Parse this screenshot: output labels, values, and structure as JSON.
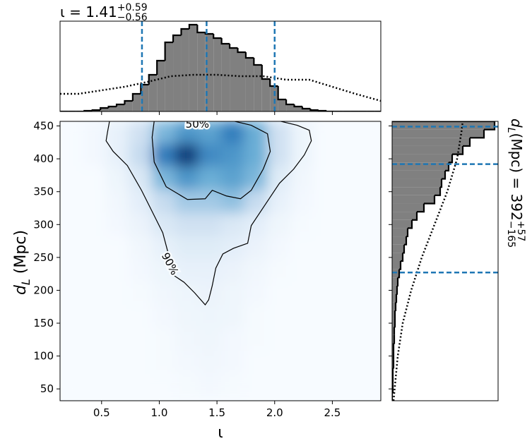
{
  "chart_data": [
    {
      "type": "heatmap",
      "xlabel": "ι",
      "ylabel": {
        "main": "d",
        "sub": "L",
        "rest": " (Mpc)"
      },
      "xlim": [
        0.14,
        2.92
      ],
      "ylim": [
        32,
        457
      ],
      "xticks": [
        0.5,
        {
          "value": 1,
          "label": "1.0"
        },
        1.5,
        {
          "value": 2,
          "label": "2.0"
        },
        2.5
      ],
      "yticks": [
        50,
        100,
        150,
        200,
        250,
        300,
        350,
        400,
        450
      ],
      "density": {
        "x": [
          0.24,
          0.44,
          0.64,
          0.84,
          1.04,
          1.24,
          1.44,
          1.64,
          1.84,
          2.04,
          2.24,
          2.44,
          2.64,
          2.84
        ],
        "y": [
          440,
          405,
          370,
          335,
          300,
          265,
          230,
          195,
          160,
          125,
          90,
          55
        ],
        "z": [
          [
            0,
            0.02,
            0.08,
            0.2,
            0.45,
            0.6,
            0.55,
            0.7,
            0.5,
            0.2,
            0.05,
            0,
            0,
            0
          ],
          [
            0,
            0.02,
            0.08,
            0.25,
            0.7,
            0.95,
            0.65,
            0.6,
            0.5,
            0.2,
            0.05,
            0,
            0,
            0
          ],
          [
            0,
            0,
            0.05,
            0.15,
            0.45,
            0.6,
            0.5,
            0.55,
            0.45,
            0.12,
            0.03,
            0,
            0,
            0
          ],
          [
            0,
            0,
            0.03,
            0.1,
            0.25,
            0.35,
            0.35,
            0.4,
            0.25,
            0.08,
            0.02,
            0,
            0,
            0
          ],
          [
            0,
            0,
            0.02,
            0.06,
            0.15,
            0.2,
            0.2,
            0.15,
            0.1,
            0.04,
            0.01,
            0,
            0,
            0
          ],
          [
            0,
            0,
            0,
            0.03,
            0.08,
            0.12,
            0.12,
            0.1,
            0.06,
            0.02,
            0,
            0,
            0,
            0
          ],
          [
            0,
            0,
            0,
            0.02,
            0.05,
            0.08,
            0.08,
            0.06,
            0.03,
            0.01,
            0,
            0,
            0,
            0
          ],
          [
            0,
            0,
            0,
            0.01,
            0.03,
            0.05,
            0.06,
            0.04,
            0.02,
            0,
            0,
            0,
            0,
            0
          ],
          [
            0,
            0,
            0,
            0,
            0.02,
            0.04,
            0.05,
            0.04,
            0.01,
            0,
            0,
            0,
            0,
            0
          ],
          [
            0,
            0,
            0,
            0,
            0.01,
            0.03,
            0.04,
            0.02,
            0.01,
            0,
            0,
            0,
            0,
            0
          ],
          [
            0,
            0,
            0,
            0,
            0.01,
            0.02,
            0.03,
            0.02,
            0,
            0,
            0,
            0,
            0,
            0
          ],
          [
            0,
            0,
            0,
            0,
            0,
            0.01,
            0.02,
            0.01,
            0,
            0,
            0,
            0,
            0,
            0
          ]
        ]
      },
      "contours": [
        {
          "label": "90%",
          "x": [
            0.569,
            0.551,
            0.539,
            0.6,
            0.723,
            0.846,
            0.938,
            1.03,
            1.079,
            1.122,
            1.214,
            1.306,
            1.398,
            1.428,
            1.459,
            1.49,
            1.551,
            1.643,
            1.766,
            1.797,
            1.919,
            2.042,
            2.165,
            2.257,
            2.318,
            2.3,
            2.195,
            2.042
          ],
          "y": [
            457.5,
            440.3,
            427.4,
            411.3,
            389.8,
            352.1,
            319.9,
            287.6,
            255.3,
            223.1,
            212.3,
            196.2,
            177.9,
            185.5,
            207,
            233.8,
            255.3,
            263.9,
            271.5,
            298.4,
            330.6,
            362.9,
            384.4,
            405.9,
            427.4,
            443.5,
            451,
            457.5
          ]
        },
        {
          "label": "50%",
          "x": [
            0.956,
            0.938,
            0.956,
            1.06,
            1.244,
            1.398,
            1.459,
            1.582,
            1.704,
            1.797,
            1.901,
            1.962,
            1.938,
            1.797,
            1.643
          ],
          "y": [
            457.5,
            432.8,
            395.1,
            357.5,
            338.1,
            339.2,
            352.1,
            343.5,
            339.2,
            352.1,
            384.4,
            411.3,
            438.1,
            451,
            457.5
          ]
        }
      ]
    },
    {
      "type": "histogram",
      "title": {
        "text": "ι = 1.41",
        "upper": "+0.59",
        "lower": "−0.56"
      },
      "color": "#808080",
      "ylim": [
        0,
        128
      ],
      "bins": [
        0.14,
        0.21,
        0.28,
        0.35,
        0.42,
        0.49,
        0.56,
        0.63,
        0.7,
        0.77,
        0.84,
        0.91,
        0.98,
        1.05,
        1.12,
        1.19,
        1.26,
        1.33,
        1.4,
        1.47,
        1.54,
        1.61,
        1.68,
        1.75,
        1.82,
        1.89,
        1.96,
        2.03,
        2.1,
        2.17,
        2.24,
        2.31,
        2.38,
        2.45,
        2.52,
        2.59,
        2.66,
        2.73,
        2.8,
        2.87,
        2.94
      ],
      "values": [
        0,
        0,
        0,
        1,
        2,
        5,
        7,
        10,
        15,
        25,
        38,
        52,
        72,
        98,
        108,
        117,
        123,
        112,
        110,
        104,
        96,
        90,
        84,
        76,
        66,
        46,
        36,
        17,
        10,
        7,
        4,
        2,
        1,
        0,
        0,
        0,
        0,
        0,
        0,
        0
      ],
      "prior": {
        "x": [
          0.14,
          0.3,
          0.5,
          0.7,
          0.9,
          1.1,
          1.3,
          1.5,
          1.7,
          1.9,
          2.1,
          2.3,
          2.5,
          2.7,
          2.92
        ],
        "y": [
          25,
          25,
          30,
          35,
          42,
          50,
          52,
          52,
          50,
          50,
          45,
          45,
          35,
          25,
          15
        ]
      },
      "lines": [
        0.85,
        1.41,
        2.0
      ],
      "line_color": "#1f77b4"
    },
    {
      "type": "histogram",
      "orientation": "horizontal",
      "title": {
        "main": "d",
        "sub": "L",
        "rest": " (Mpc) = 392",
        "upper": "+57",
        "lower": "−165"
      },
      "color": "#808080",
      "xlim": [
        0,
        150
      ],
      "bins": [
        32,
        44.5,
        57,
        69.5,
        82,
        94.5,
        107,
        119.5,
        132,
        144.5,
        157,
        169.5,
        182,
        194.5,
        207,
        219.5,
        232,
        244.5,
        257,
        269.5,
        282,
        294.5,
        307,
        319.5,
        332,
        344.5,
        357,
        369.5,
        382,
        394.5,
        407,
        419.5,
        432,
        444.5,
        457
      ],
      "values": [
        0,
        1,
        1,
        1,
        2,
        2,
        2,
        3,
        3,
        4,
        4,
        5,
        6,
        7,
        8,
        10,
        12,
        15,
        17,
        20,
        22,
        28,
        35,
        45,
        60,
        68,
        70,
        75,
        80,
        85,
        100,
        110,
        130,
        145
      ],
      "prior": {
        "x": [
          2,
          8,
          15,
          27,
          42,
          60,
          78,
          92,
          98,
          100
        ],
        "y": [
          32,
          100,
          150,
          200,
          250,
          300,
          350,
          400,
          440,
          457
        ]
      },
      "lines": [
        392,
        449,
        227
      ],
      "line_color": "#1f77b4"
    }
  ]
}
